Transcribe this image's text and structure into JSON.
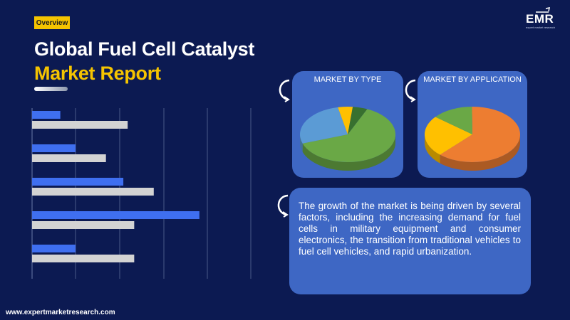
{
  "header": {
    "badge": "Overview",
    "title_line1": "Global Fuel Cell Catalyst",
    "title_line2": "Market Report"
  },
  "logo": {
    "name": "EMR",
    "tagline": "expert market research"
  },
  "colors": {
    "background": "#0c1a52",
    "accent_yellow": "#f5c400",
    "panel_blue": "#3e67c4",
    "bar_blue": "#3f6ff0",
    "bar_gray": "#d3d3d3"
  },
  "chart_data": [
    {
      "type": "bar",
      "orientation": "horizontal",
      "series": [
        {
          "name": "",
          "values": [
            0.13,
            0.2,
            0.42,
            0.77,
            0.2
          ]
        },
        {
          "name": "",
          "values": [
            0.44,
            0.34,
            0.56,
            0.47,
            0.47
          ]
        }
      ],
      "xlim": [
        0,
        1
      ],
      "grid": true
    },
    {
      "type": "pie",
      "title": "MARKET BY TYPE",
      "slices": [
        {
          "value": 0.63,
          "color": "#6aa846"
        },
        {
          "value": 0.27,
          "color": "#5b9bd5"
        },
        {
          "value": 0.05,
          "color": "#ffc000"
        },
        {
          "value": 0.05,
          "color": "#38702f"
        }
      ]
    },
    {
      "type": "pie",
      "title": "MARKET BY  APPLICATION",
      "slices": [
        {
          "value": 0.62,
          "color": "#ed7d31"
        },
        {
          "value": 0.24,
          "color": "#ffc000"
        },
        {
          "value": 0.14,
          "color": "#6aa846"
        }
      ]
    }
  ],
  "description": "The growth of the market is being driven by several factors, including the increasing demand for fuel cells in military equipment and consumer electronics, the transition from traditional vehicles to fuel cell vehicles, and rapid urbanization.",
  "footer": {
    "url": "www.expertmarketresearch.com"
  }
}
